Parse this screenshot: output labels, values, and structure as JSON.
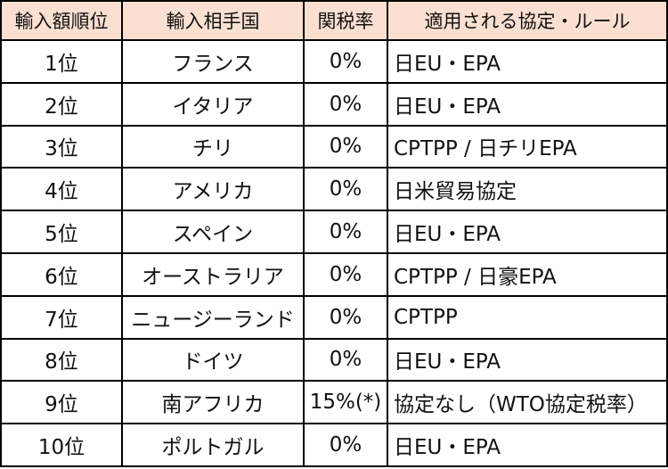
{
  "table": {
    "headers": [
      "輸入額順位",
      "輸入相手国",
      "関税率",
      "適用される協定・ルール"
    ],
    "rows": [
      {
        "rank": "1位",
        "country": "フランス",
        "tariff": "0%",
        "agreement": "日EU・EPA"
      },
      {
        "rank": "2位",
        "country": "イタリア",
        "tariff": "0%",
        "agreement": "日EU・EPA"
      },
      {
        "rank": "3位",
        "country": "チリ",
        "tariff": "0%",
        "agreement": "CPTPP / 日チリEPA"
      },
      {
        "rank": "4位",
        "country": "アメリカ",
        "tariff": "0%",
        "agreement": "日米貿易協定"
      },
      {
        "rank": "5位",
        "country": "スペイン",
        "tariff": "0%",
        "agreement": "日EU・EPA"
      },
      {
        "rank": "6位",
        "country": "オーストラリア",
        "tariff": "0%",
        "agreement": "CPTPP / 日豪EPA"
      },
      {
        "rank": "7位",
        "country": "ニュージーランド",
        "tariff": "0%",
        "agreement": "CPTPP"
      },
      {
        "rank": "8位",
        "country": "ドイツ",
        "tariff": "0%",
        "agreement": "日EU・EPA"
      },
      {
        "rank": "9位",
        "country": "南アフリカ",
        "tariff": "15%(*)",
        "agreement": "協定なし（WTO協定税率）"
      },
      {
        "rank": "10位",
        "country": "ポルトガル",
        "tariff": "0%",
        "agreement": "日EU・EPA"
      }
    ]
  },
  "colors": {
    "header_background": "#fbe0d2",
    "border": "#000000",
    "text": "#111111"
  }
}
